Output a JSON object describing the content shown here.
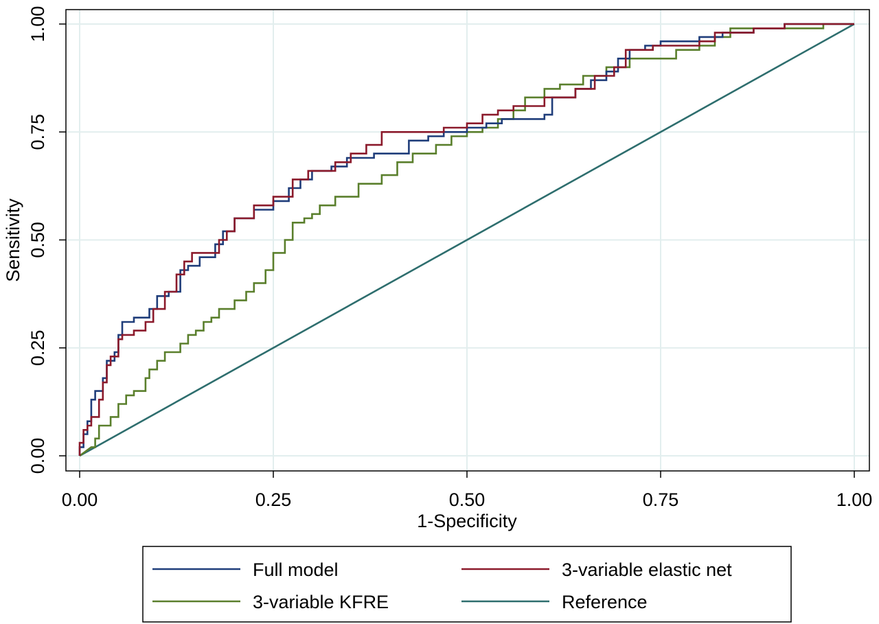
{
  "chart_data": {
    "type": "line",
    "title": "",
    "xlabel": "1-Specificity",
    "ylabel": "Sensitivity",
    "xlim": [
      0,
      1
    ],
    "ylim": [
      0,
      1
    ],
    "x_ticks": [
      "0.00",
      "0.25",
      "0.50",
      "0.75",
      "1.00"
    ],
    "y_ticks": [
      "0.00",
      "0.25",
      "0.50",
      "0.75",
      "1.00"
    ],
    "grid": true,
    "legend_position": "bottom",
    "series": [
      {
        "name": "Full model",
        "color": "#1f3d7a",
        "points": [
          [
            0,
            0
          ],
          [
            0,
            0.02
          ],
          [
            0.005,
            0.02
          ],
          [
            0.005,
            0.05
          ],
          [
            0.01,
            0.05
          ],
          [
            0.01,
            0.08
          ],
          [
            0.015,
            0.08
          ],
          [
            0.015,
            0.13
          ],
          [
            0.02,
            0.13
          ],
          [
            0.02,
            0.15
          ],
          [
            0.03,
            0.15
          ],
          [
            0.03,
            0.18
          ],
          [
            0.035,
            0.18
          ],
          [
            0.035,
            0.22
          ],
          [
            0.045,
            0.22
          ],
          [
            0.045,
            0.24
          ],
          [
            0.05,
            0.24
          ],
          [
            0.05,
            0.28
          ],
          [
            0.055,
            0.28
          ],
          [
            0.055,
            0.31
          ],
          [
            0.07,
            0.31
          ],
          [
            0.07,
            0.32
          ],
          [
            0.09,
            0.32
          ],
          [
            0.09,
            0.34
          ],
          [
            0.1,
            0.34
          ],
          [
            0.1,
            0.37
          ],
          [
            0.115,
            0.37
          ],
          [
            0.115,
            0.38
          ],
          [
            0.13,
            0.38
          ],
          [
            0.13,
            0.43
          ],
          [
            0.14,
            0.43
          ],
          [
            0.14,
            0.44
          ],
          [
            0.155,
            0.44
          ],
          [
            0.155,
            0.46
          ],
          [
            0.175,
            0.46
          ],
          [
            0.175,
            0.49
          ],
          [
            0.185,
            0.49
          ],
          [
            0.185,
            0.52
          ],
          [
            0.2,
            0.52
          ],
          [
            0.2,
            0.55
          ],
          [
            0.225,
            0.55
          ],
          [
            0.225,
            0.57
          ],
          [
            0.25,
            0.57
          ],
          [
            0.25,
            0.59
          ],
          [
            0.27,
            0.59
          ],
          [
            0.27,
            0.62
          ],
          [
            0.285,
            0.62
          ],
          [
            0.285,
            0.64
          ],
          [
            0.3,
            0.64
          ],
          [
            0.3,
            0.66
          ],
          [
            0.325,
            0.66
          ],
          [
            0.325,
            0.67
          ],
          [
            0.345,
            0.67
          ],
          [
            0.345,
            0.69
          ],
          [
            0.38,
            0.69
          ],
          [
            0.38,
            0.7
          ],
          [
            0.425,
            0.7
          ],
          [
            0.425,
            0.73
          ],
          [
            0.45,
            0.73
          ],
          [
            0.45,
            0.74
          ],
          [
            0.47,
            0.74
          ],
          [
            0.47,
            0.75
          ],
          [
            0.5,
            0.75
          ],
          [
            0.5,
            0.76
          ],
          [
            0.525,
            0.76
          ],
          [
            0.525,
            0.77
          ],
          [
            0.545,
            0.77
          ],
          [
            0.545,
            0.78
          ],
          [
            0.6,
            0.78
          ],
          [
            0.6,
            0.79
          ],
          [
            0.61,
            0.79
          ],
          [
            0.61,
            0.83
          ],
          [
            0.64,
            0.83
          ],
          [
            0.64,
            0.85
          ],
          [
            0.66,
            0.85
          ],
          [
            0.66,
            0.87
          ],
          [
            0.68,
            0.87
          ],
          [
            0.68,
            0.89
          ],
          [
            0.695,
            0.89
          ],
          [
            0.695,
            0.92
          ],
          [
            0.71,
            0.92
          ],
          [
            0.71,
            0.94
          ],
          [
            0.73,
            0.94
          ],
          [
            0.73,
            0.95
          ],
          [
            0.75,
            0.95
          ],
          [
            0.75,
            0.96
          ],
          [
            0.8,
            0.96
          ],
          [
            0.8,
            0.97
          ],
          [
            0.83,
            0.97
          ],
          [
            0.83,
            0.98
          ],
          [
            0.87,
            0.98
          ],
          [
            0.87,
            0.99
          ],
          [
            0.91,
            0.99
          ],
          [
            0.91,
            1.0
          ],
          [
            1.0,
            1.0
          ]
        ]
      },
      {
        "name": "3-variable elastic net",
        "color": "#8b1a2b",
        "points": [
          [
            0,
            0
          ],
          [
            0,
            0.03
          ],
          [
            0.005,
            0.03
          ],
          [
            0.005,
            0.06
          ],
          [
            0.01,
            0.06
          ],
          [
            0.01,
            0.07
          ],
          [
            0.015,
            0.07
          ],
          [
            0.015,
            0.09
          ],
          [
            0.025,
            0.09
          ],
          [
            0.025,
            0.13
          ],
          [
            0.03,
            0.13
          ],
          [
            0.03,
            0.17
          ],
          [
            0.035,
            0.17
          ],
          [
            0.035,
            0.21
          ],
          [
            0.04,
            0.21
          ],
          [
            0.04,
            0.23
          ],
          [
            0.05,
            0.23
          ],
          [
            0.05,
            0.27
          ],
          [
            0.055,
            0.27
          ],
          [
            0.055,
            0.28
          ],
          [
            0.07,
            0.28
          ],
          [
            0.07,
            0.29
          ],
          [
            0.085,
            0.29
          ],
          [
            0.085,
            0.31
          ],
          [
            0.095,
            0.31
          ],
          [
            0.095,
            0.34
          ],
          [
            0.11,
            0.34
          ],
          [
            0.11,
            0.38
          ],
          [
            0.125,
            0.38
          ],
          [
            0.125,
            0.42
          ],
          [
            0.135,
            0.42
          ],
          [
            0.135,
            0.45
          ],
          [
            0.145,
            0.45
          ],
          [
            0.145,
            0.47
          ],
          [
            0.16,
            0.47
          ],
          [
            0.16,
            0.47
          ],
          [
            0.18,
            0.47
          ],
          [
            0.18,
            0.5
          ],
          [
            0.19,
            0.5
          ],
          [
            0.19,
            0.52
          ],
          [
            0.2,
            0.52
          ],
          [
            0.2,
            0.55
          ],
          [
            0.225,
            0.55
          ],
          [
            0.225,
            0.58
          ],
          [
            0.25,
            0.58
          ],
          [
            0.25,
            0.6
          ],
          [
            0.275,
            0.6
          ],
          [
            0.275,
            0.64
          ],
          [
            0.295,
            0.64
          ],
          [
            0.295,
            0.66
          ],
          [
            0.33,
            0.66
          ],
          [
            0.33,
            0.68
          ],
          [
            0.35,
            0.68
          ],
          [
            0.35,
            0.7
          ],
          [
            0.37,
            0.7
          ],
          [
            0.37,
            0.72
          ],
          [
            0.39,
            0.72
          ],
          [
            0.39,
            0.75
          ],
          [
            0.47,
            0.75
          ],
          [
            0.47,
            0.76
          ],
          [
            0.5,
            0.76
          ],
          [
            0.5,
            0.77
          ],
          [
            0.52,
            0.77
          ],
          [
            0.52,
            0.79
          ],
          [
            0.54,
            0.79
          ],
          [
            0.54,
            0.8
          ],
          [
            0.56,
            0.8
          ],
          [
            0.56,
            0.81
          ],
          [
            0.6,
            0.81
          ],
          [
            0.6,
            0.83
          ],
          [
            0.64,
            0.83
          ],
          [
            0.64,
            0.85
          ],
          [
            0.665,
            0.85
          ],
          [
            0.665,
            0.88
          ],
          [
            0.69,
            0.88
          ],
          [
            0.69,
            0.9
          ],
          [
            0.705,
            0.9
          ],
          [
            0.705,
            0.94
          ],
          [
            0.74,
            0.94
          ],
          [
            0.74,
            0.95
          ],
          [
            0.8,
            0.95
          ],
          [
            0.8,
            0.96
          ],
          [
            0.82,
            0.96
          ],
          [
            0.82,
            0.98
          ],
          [
            0.87,
            0.98
          ],
          [
            0.87,
            0.99
          ],
          [
            0.91,
            0.99
          ],
          [
            0.91,
            1.0
          ],
          [
            1.0,
            1.0
          ]
        ]
      },
      {
        "name": "3-variable KFRE",
        "color": "#5a7f2c",
        "points": [
          [
            0,
            0
          ],
          [
            0.015,
            0.02
          ],
          [
            0.02,
            0.02
          ],
          [
            0.02,
            0.04
          ],
          [
            0.025,
            0.04
          ],
          [
            0.025,
            0.07
          ],
          [
            0.04,
            0.07
          ],
          [
            0.04,
            0.09
          ],
          [
            0.05,
            0.09
          ],
          [
            0.05,
            0.12
          ],
          [
            0.06,
            0.12
          ],
          [
            0.06,
            0.14
          ],
          [
            0.07,
            0.14
          ],
          [
            0.07,
            0.15
          ],
          [
            0.085,
            0.15
          ],
          [
            0.085,
            0.18
          ],
          [
            0.09,
            0.18
          ],
          [
            0.09,
            0.2
          ],
          [
            0.1,
            0.2
          ],
          [
            0.1,
            0.22
          ],
          [
            0.11,
            0.22
          ],
          [
            0.11,
            0.24
          ],
          [
            0.13,
            0.24
          ],
          [
            0.13,
            0.26
          ],
          [
            0.14,
            0.26
          ],
          [
            0.14,
            0.28
          ],
          [
            0.15,
            0.28
          ],
          [
            0.15,
            0.29
          ],
          [
            0.16,
            0.29
          ],
          [
            0.16,
            0.31
          ],
          [
            0.17,
            0.31
          ],
          [
            0.17,
            0.32
          ],
          [
            0.18,
            0.32
          ],
          [
            0.18,
            0.34
          ],
          [
            0.2,
            0.34
          ],
          [
            0.2,
            0.36
          ],
          [
            0.215,
            0.36
          ],
          [
            0.215,
            0.38
          ],
          [
            0.225,
            0.38
          ],
          [
            0.225,
            0.4
          ],
          [
            0.24,
            0.4
          ],
          [
            0.24,
            0.43
          ],
          [
            0.25,
            0.43
          ],
          [
            0.25,
            0.47
          ],
          [
            0.265,
            0.47
          ],
          [
            0.265,
            0.5
          ],
          [
            0.275,
            0.5
          ],
          [
            0.275,
            0.54
          ],
          [
            0.29,
            0.54
          ],
          [
            0.29,
            0.55
          ],
          [
            0.3,
            0.55
          ],
          [
            0.3,
            0.56
          ],
          [
            0.31,
            0.56
          ],
          [
            0.31,
            0.58
          ],
          [
            0.33,
            0.58
          ],
          [
            0.33,
            0.6
          ],
          [
            0.36,
            0.6
          ],
          [
            0.36,
            0.63
          ],
          [
            0.39,
            0.63
          ],
          [
            0.39,
            0.65
          ],
          [
            0.41,
            0.65
          ],
          [
            0.41,
            0.68
          ],
          [
            0.43,
            0.68
          ],
          [
            0.43,
            0.7
          ],
          [
            0.46,
            0.7
          ],
          [
            0.46,
            0.72
          ],
          [
            0.48,
            0.72
          ],
          [
            0.48,
            0.74
          ],
          [
            0.5,
            0.74
          ],
          [
            0.5,
            0.75
          ],
          [
            0.52,
            0.75
          ],
          [
            0.52,
            0.76
          ],
          [
            0.54,
            0.76
          ],
          [
            0.54,
            0.78
          ],
          [
            0.56,
            0.78
          ],
          [
            0.56,
            0.8
          ],
          [
            0.575,
            0.8
          ],
          [
            0.575,
            0.83
          ],
          [
            0.6,
            0.83
          ],
          [
            0.6,
            0.85
          ],
          [
            0.62,
            0.85
          ],
          [
            0.62,
            0.86
          ],
          [
            0.65,
            0.86
          ],
          [
            0.65,
            0.88
          ],
          [
            0.68,
            0.88
          ],
          [
            0.68,
            0.9
          ],
          [
            0.71,
            0.9
          ],
          [
            0.71,
            0.92
          ],
          [
            0.77,
            0.92
          ],
          [
            0.77,
            0.94
          ],
          [
            0.8,
            0.94
          ],
          [
            0.8,
            0.95
          ],
          [
            0.82,
            0.95
          ],
          [
            0.82,
            0.97
          ],
          [
            0.84,
            0.97
          ],
          [
            0.84,
            0.99
          ],
          [
            0.96,
            0.99
          ],
          [
            0.96,
            1.0
          ],
          [
            1.0,
            1.0
          ]
        ]
      },
      {
        "name": "Reference",
        "color": "#2e6e6e",
        "points": [
          [
            0,
            0
          ],
          [
            1,
            1
          ]
        ]
      }
    ]
  }
}
